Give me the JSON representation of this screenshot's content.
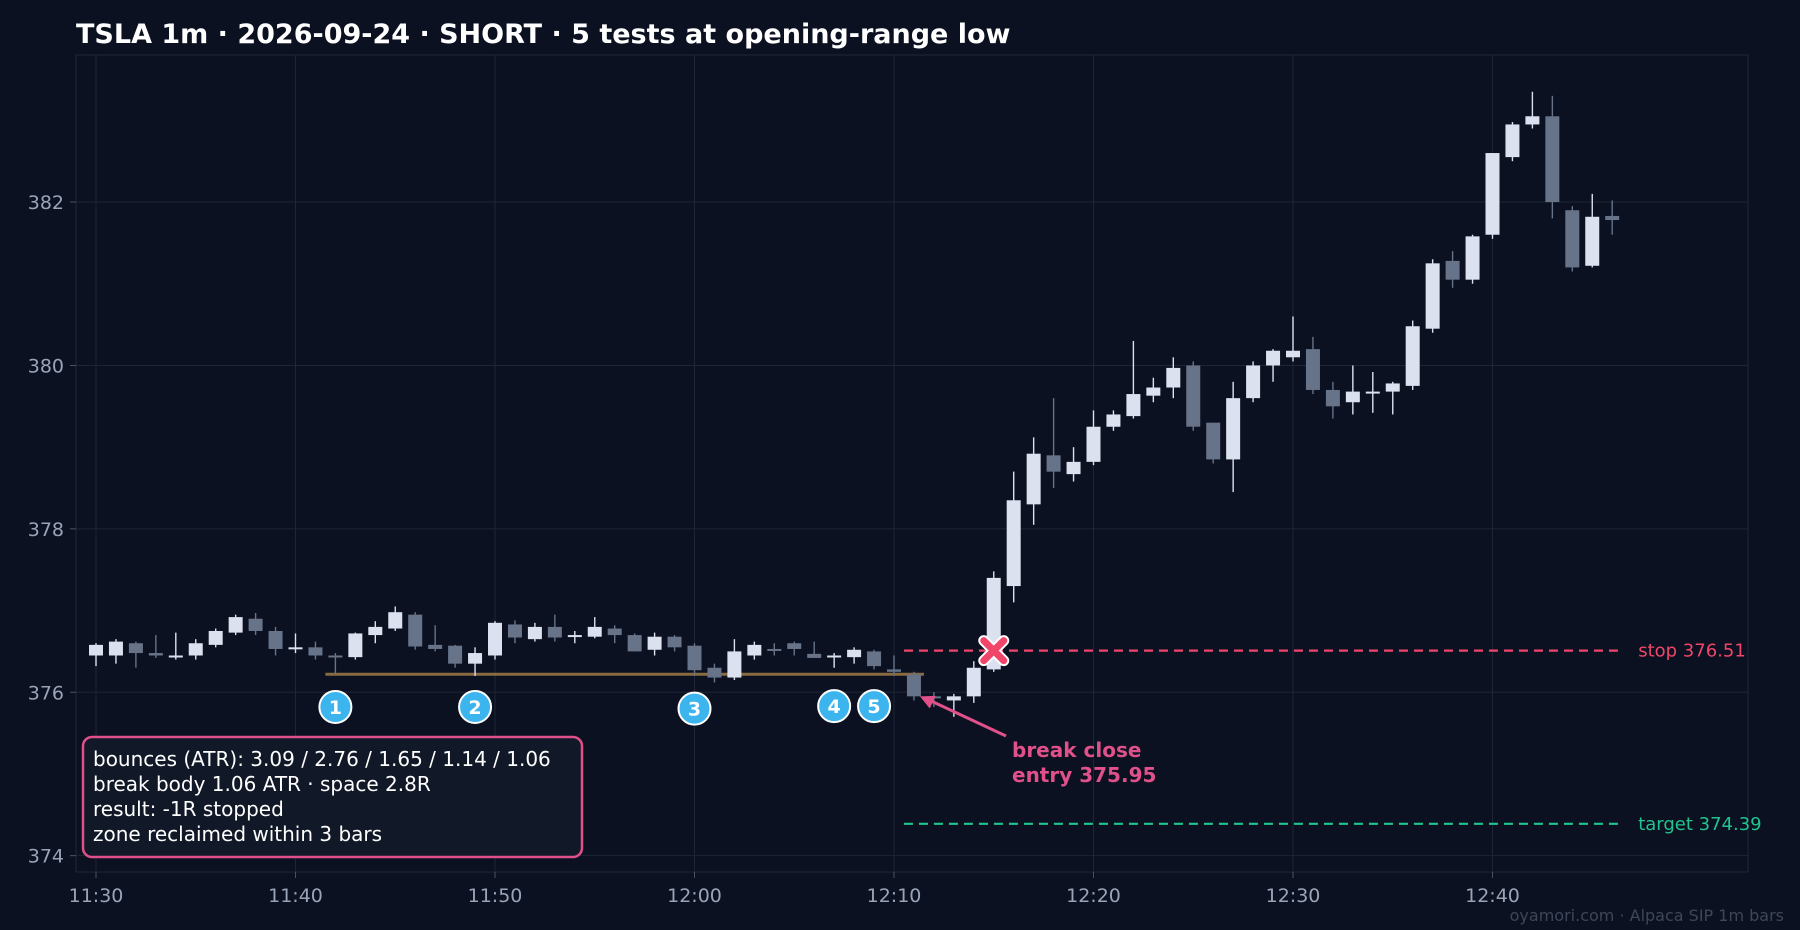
{
  "chart_data": {
    "type": "candlestick",
    "title": "TSLA 1m · 2026-09-24 · SHORT · 5 tests at opening-range low",
    "footer": "oyamori.com · Alpaca SIP 1m bars",
    "ylim": [
      373.8,
      383.8
    ],
    "yticks": [
      374,
      376,
      378,
      380,
      382
    ],
    "xticks": [
      "11:30",
      "11:40",
      "11:50",
      "12:00",
      "12:10",
      "12:20",
      "12:30",
      "12:40"
    ],
    "grid": true,
    "colors": {
      "up": "#dbe1ee",
      "down": "#667389",
      "stop": "#f0466a",
      "target": "#22c38e",
      "zone": "#b68949",
      "accent": "#e0508a",
      "test_marker": "#3cb4ee"
    },
    "candles": [
      {
        "time": "11:30",
        "open": 376.45,
        "high": 376.6,
        "low": 376.32,
        "close": 376.58
      },
      {
        "time": "11:31",
        "open": 376.45,
        "high": 376.65,
        "low": 376.35,
        "close": 376.62
      },
      {
        "time": "11:32",
        "open": 376.6,
        "high": 376.62,
        "low": 376.3,
        "close": 376.48
      },
      {
        "time": "11:33",
        "open": 376.48,
        "high": 376.7,
        "low": 376.42,
        "close": 376.45
      },
      {
        "time": "11:34",
        "open": 376.43,
        "high": 376.73,
        "low": 376.4,
        "close": 376.45
      },
      {
        "time": "11:35",
        "open": 376.45,
        "high": 376.65,
        "low": 376.4,
        "close": 376.6
      },
      {
        "time": "11:36",
        "open": 376.58,
        "high": 376.78,
        "low": 376.55,
        "close": 376.75
      },
      {
        "time": "11:37",
        "open": 376.73,
        "high": 376.95,
        "low": 376.7,
        "close": 376.92
      },
      {
        "time": "11:38",
        "open": 376.9,
        "high": 376.97,
        "low": 376.7,
        "close": 376.75
      },
      {
        "time": "11:39",
        "open": 376.75,
        "high": 376.8,
        "low": 376.45,
        "close": 376.53
      },
      {
        "time": "11:40",
        "open": 376.53,
        "high": 376.72,
        "low": 376.48,
        "close": 376.55
      },
      {
        "time": "11:41",
        "open": 376.55,
        "high": 376.62,
        "low": 376.4,
        "close": 376.45
      },
      {
        "time": "11:42",
        "open": 376.45,
        "high": 376.48,
        "low": 376.22,
        "close": 376.43
      },
      {
        "time": "11:43",
        "open": 376.43,
        "high": 376.73,
        "low": 376.4,
        "close": 376.72
      },
      {
        "time": "11:44",
        "open": 376.7,
        "high": 376.87,
        "low": 376.6,
        "close": 376.8
      },
      {
        "time": "11:45",
        "open": 376.78,
        "high": 377.05,
        "low": 376.75,
        "close": 376.98
      },
      {
        "time": "11:46",
        "open": 376.95,
        "high": 376.98,
        "low": 376.52,
        "close": 376.56
      },
      {
        "time": "11:47",
        "open": 376.58,
        "high": 376.82,
        "low": 376.5,
        "close": 376.53
      },
      {
        "time": "11:48",
        "open": 376.57,
        "high": 376.58,
        "low": 376.3,
        "close": 376.35
      },
      {
        "time": "11:49",
        "open": 376.35,
        "high": 376.55,
        "low": 376.2,
        "close": 376.48
      },
      {
        "time": "11:50",
        "open": 376.45,
        "high": 376.87,
        "low": 376.4,
        "close": 376.85
      },
      {
        "time": "11:51",
        "open": 376.83,
        "high": 376.88,
        "low": 376.6,
        "close": 376.67
      },
      {
        "time": "11:52",
        "open": 376.65,
        "high": 376.85,
        "low": 376.62,
        "close": 376.8
      },
      {
        "time": "11:53",
        "open": 376.8,
        "high": 376.95,
        "low": 376.62,
        "close": 376.67
      },
      {
        "time": "11:54",
        "open": 376.68,
        "high": 376.75,
        "low": 376.6,
        "close": 376.7
      },
      {
        "time": "11:55",
        "open": 376.68,
        "high": 376.92,
        "low": 376.66,
        "close": 376.8
      },
      {
        "time": "11:56",
        "open": 376.78,
        "high": 376.82,
        "low": 376.6,
        "close": 376.7
      },
      {
        "time": "11:57",
        "open": 376.7,
        "high": 376.72,
        "low": 376.5,
        "close": 376.5
      },
      {
        "time": "11:58",
        "open": 376.52,
        "high": 376.73,
        "low": 376.45,
        "close": 376.68
      },
      {
        "time": "11:59",
        "open": 376.68,
        "high": 376.7,
        "low": 376.5,
        "close": 376.55
      },
      {
        "time": "12:00",
        "open": 376.57,
        "high": 376.6,
        "low": 376.2,
        "close": 376.27
      },
      {
        "time": "12:01",
        "open": 376.3,
        "high": 376.35,
        "low": 376.12,
        "close": 376.18
      },
      {
        "time": "12:02",
        "open": 376.18,
        "high": 376.65,
        "low": 376.15,
        "close": 376.5
      },
      {
        "time": "12:03",
        "open": 376.45,
        "high": 376.62,
        "low": 376.4,
        "close": 376.58
      },
      {
        "time": "12:04",
        "open": 376.53,
        "high": 376.6,
        "low": 376.45,
        "close": 376.52
      },
      {
        "time": "12:05",
        "open": 376.6,
        "high": 376.62,
        "low": 376.45,
        "close": 376.53
      },
      {
        "time": "12:06",
        "open": 376.47,
        "high": 376.62,
        "low": 376.42,
        "close": 376.42
      },
      {
        "time": "12:07",
        "open": 376.45,
        "high": 376.48,
        "low": 376.3,
        "close": 376.45
      },
      {
        "time": "12:08",
        "open": 376.43,
        "high": 376.55,
        "low": 376.35,
        "close": 376.52
      },
      {
        "time": "12:09",
        "open": 376.5,
        "high": 376.52,
        "low": 376.28,
        "close": 376.32
      },
      {
        "time": "12:10",
        "open": 376.28,
        "high": 376.45,
        "low": 376.2,
        "close": 376.25
      },
      {
        "time": "12:11",
        "open": 376.22,
        "high": 376.25,
        "low": 375.9,
        "close": 375.95
      },
      {
        "time": "12:12",
        "open": 375.95,
        "high": 376.0,
        "low": 375.82,
        "close": 375.93
      },
      {
        "time": "12:13",
        "open": 375.9,
        "high": 375.98,
        "low": 375.7,
        "close": 375.95
      },
      {
        "time": "12:14",
        "open": 375.95,
        "high": 376.38,
        "low": 375.87,
        "close": 376.3
      },
      {
        "time": "12:15",
        "open": 376.28,
        "high": 377.48,
        "low": 376.25,
        "close": 377.4
      },
      {
        "time": "12:16",
        "open": 377.3,
        "high": 378.7,
        "low": 377.1,
        "close": 378.35
      },
      {
        "time": "12:17",
        "open": 378.3,
        "high": 379.12,
        "low": 378.05,
        "close": 378.92
      },
      {
        "time": "12:18",
        "open": 378.9,
        "high": 379.6,
        "low": 378.5,
        "close": 378.7
      },
      {
        "time": "12:19",
        "open": 378.67,
        "high": 379.0,
        "low": 378.58,
        "close": 378.82
      },
      {
        "time": "12:20",
        "open": 378.82,
        "high": 379.45,
        "low": 378.78,
        "close": 379.25
      },
      {
        "time": "12:21",
        "open": 379.25,
        "high": 379.45,
        "low": 379.2,
        "close": 379.4
      },
      {
        "time": "12:22",
        "open": 379.38,
        "high": 380.3,
        "low": 379.35,
        "close": 379.65
      },
      {
        "time": "12:23",
        "open": 379.63,
        "high": 379.85,
        "low": 379.55,
        "close": 379.73
      },
      {
        "time": "12:24",
        "open": 379.73,
        "high": 380.1,
        "low": 379.6,
        "close": 379.97
      },
      {
        "time": "12:25",
        "open": 380.0,
        "high": 380.05,
        "low": 379.2,
        "close": 379.25
      },
      {
        "time": "12:26",
        "open": 379.3,
        "high": 379.3,
        "low": 378.8,
        "close": 378.85
      },
      {
        "time": "12:27",
        "open": 378.85,
        "high": 379.8,
        "low": 378.45,
        "close": 379.6
      },
      {
        "time": "12:28",
        "open": 379.6,
        "high": 380.05,
        "low": 379.55,
        "close": 380.0
      },
      {
        "time": "12:29",
        "open": 380.0,
        "high": 380.2,
        "low": 379.8,
        "close": 380.18
      },
      {
        "time": "12:30",
        "open": 380.1,
        "high": 380.6,
        "low": 380.05,
        "close": 380.18
      },
      {
        "time": "12:31",
        "open": 380.2,
        "high": 380.35,
        "low": 379.65,
        "close": 379.7
      },
      {
        "time": "12:32",
        "open": 379.7,
        "high": 379.8,
        "low": 379.35,
        "close": 379.5
      },
      {
        "time": "12:33",
        "open": 379.55,
        "high": 380.0,
        "low": 379.4,
        "close": 379.68
      },
      {
        "time": "12:34",
        "open": 379.66,
        "high": 379.92,
        "low": 379.42,
        "close": 379.68
      },
      {
        "time": "12:35",
        "open": 379.68,
        "high": 379.8,
        "low": 379.4,
        "close": 379.78
      },
      {
        "time": "12:36",
        "open": 379.75,
        "high": 380.55,
        "low": 379.7,
        "close": 380.48
      },
      {
        "time": "12:37",
        "open": 380.45,
        "high": 381.3,
        "low": 380.4,
        "close": 381.25
      },
      {
        "time": "12:38",
        "open": 381.28,
        "high": 381.4,
        "low": 380.95,
        "close": 381.05
      },
      {
        "time": "12:39",
        "open": 381.05,
        "high": 381.6,
        "low": 381.0,
        "close": 381.58
      },
      {
        "time": "12:40",
        "open": 381.6,
        "high": 382.6,
        "low": 381.55,
        "close": 382.6
      },
      {
        "time": "12:41",
        "open": 382.55,
        "high": 382.98,
        "low": 382.5,
        "close": 382.95
      },
      {
        "time": "12:42",
        "open": 382.95,
        "high": 383.35,
        "low": 382.9,
        "close": 383.05
      },
      {
        "time": "12:43",
        "open": 383.05,
        "high": 383.3,
        "low": 381.8,
        "close": 382.0
      },
      {
        "time": "12:44",
        "open": 381.9,
        "high": 381.95,
        "low": 381.15,
        "close": 381.2
      },
      {
        "time": "12:45",
        "open": 381.22,
        "high": 382.1,
        "low": 381.2,
        "close": 381.82
      },
      {
        "time": "12:46",
        "open": 381.83,
        "high": 382.02,
        "low": 381.6,
        "close": 381.78
      }
    ],
    "zone": {
      "price": 376.22,
      "from": "11:42",
      "to": "12:11"
    },
    "stop": {
      "price": 376.51,
      "label": "stop 376.51",
      "from": "12:11",
      "to": "12:46"
    },
    "target": {
      "price": 374.39,
      "label": "target 374.39",
      "from": "12:11",
      "to": "12:46"
    },
    "tests": [
      {
        "label": "1",
        "time": "11:42",
        "price": 375.82
      },
      {
        "label": "2",
        "time": "11:49",
        "price": 375.82
      },
      {
        "label": "3",
        "time": "12:00",
        "price": 375.8
      },
      {
        "label": "4",
        "time": "12:07",
        "price": 375.83
      },
      {
        "label": "5",
        "time": "12:09",
        "price": 375.83
      }
    ],
    "entry_marker": {
      "time": "12:15",
      "price": 376.51
    },
    "annotation": {
      "lines": [
        "break close",
        "entry 375.95"
      ],
      "arrow_to": {
        "time": "12:11",
        "price": 375.95
      }
    },
    "info_box": {
      "lines": [
        "bounces (ATR): 3.09 / 2.76 / 1.65 / 1.14 / 1.06",
        "break body 1.06 ATR · space 2.8R",
        "result: -1R stopped",
        "zone reclaimed within 3 bars"
      ]
    }
  }
}
